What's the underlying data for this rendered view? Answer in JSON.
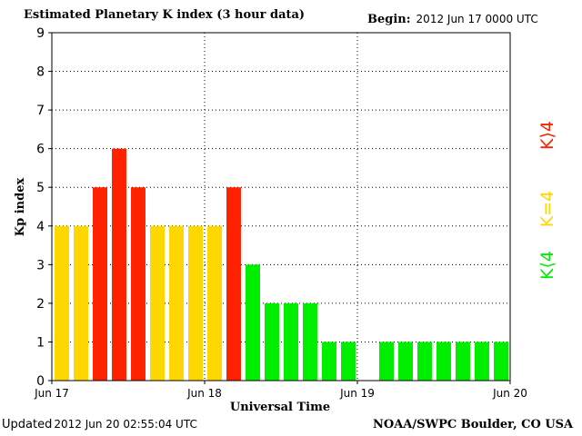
{
  "header": {
    "title": "Estimated Planetary K index (3 hour data)",
    "begin_label": "Begin:",
    "begin_value": "2012 Jun 17 0000 UTC"
  },
  "footer": {
    "updated_label": "Updated",
    "updated_value": "2012 Jun 20 02:55:04 UTC",
    "credit": "NOAA/SWPC Boulder, CO USA"
  },
  "legend": {
    "greater": {
      "label": "K⟩4",
      "color": "#ff2200"
    },
    "equal": {
      "label": "K=4",
      "color": "#ffd700"
    },
    "less": {
      "label": "K⟨4",
      "color": "#00ee00"
    }
  },
  "chart_data": {
    "type": "bar",
    "title": "Estimated Planetary K index (3 hour data)",
    "xlabel": "Universal Time",
    "ylabel": "Kp index",
    "ylim": [
      0,
      9
    ],
    "yticks": [
      "0",
      "1",
      "2",
      "3",
      "4",
      "5",
      "6",
      "7",
      "8",
      "9"
    ],
    "xticks": [
      "Jun 17",
      "Jun 18",
      "Jun 19",
      "Jun 20"
    ],
    "interval_hours": 3,
    "grid": true,
    "values": [
      4,
      4,
      5,
      6,
      5,
      4,
      4,
      4,
      4,
      5,
      3,
      2,
      2,
      2,
      1,
      1,
      null,
      1,
      1,
      1,
      1,
      1,
      1,
      1
    ],
    "colors": {
      "greater": "#ff2200",
      "equal": "#ffd700",
      "less": "#00ee00"
    }
  }
}
